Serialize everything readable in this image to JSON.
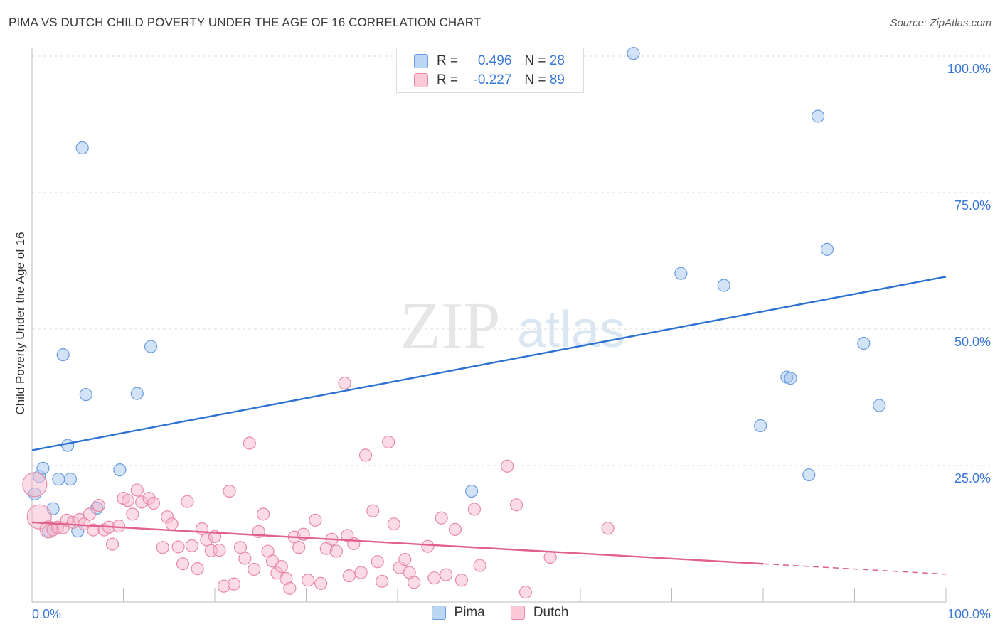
{
  "header": {
    "title": "PIMA VS DUTCH CHILD POVERTY UNDER THE AGE OF 16 CORRELATION CHART",
    "source": "Source: ZipAtlas.com"
  },
  "watermark": {
    "zip": "ZIP",
    "atlas": "atlas"
  },
  "legend": {
    "rows": [
      {
        "r_label": "R =",
        "r_value": "0.496",
        "n_label": "N =",
        "n_value": "28"
      },
      {
        "r_label": "R =",
        "r_value": "-0.227",
        "n_label": "N =",
        "n_value": "89"
      }
    ]
  },
  "bottom_legend": {
    "pima": "Pima",
    "dutch": "Dutch"
  },
  "colors": {
    "pima_fill": "#a8c8f0",
    "pima_stroke": "#6a9de0",
    "pima_line": "#2d72d2",
    "dutch_fill": "#f7b8cb",
    "dutch_stroke": "#e88aa8",
    "dutch_line": "#e0608e",
    "tick_label": "#3a78d8",
    "grid": "#dddddd"
  },
  "chart_data": {
    "type": "scatter",
    "title": "PIMA VS DUTCH CHILD POVERTY UNDER THE AGE OF 16 CORRELATION CHART",
    "xlabel": "",
    "ylabel": "Child Poverty Under the Age of 16",
    "xlim": [
      0,
      100
    ],
    "ylim": [
      0,
      100
    ],
    "x_tick_labels": [
      "0.0%",
      "100.0%"
    ],
    "y_tick_labels": [
      {
        "value": 25,
        "label": "25.0%"
      },
      {
        "value": 50,
        "label": "50.0%"
      },
      {
        "value": 75,
        "label": "75.0%"
      },
      {
        "value": 100,
        "label": "100.0%"
      }
    ],
    "grid": true,
    "legend": "top-center",
    "series": [
      {
        "name": "Pima",
        "r": 0.496,
        "n": 28,
        "trend": {
          "x": [
            0,
            100
          ],
          "y": [
            27.8,
            59.6
          ]
        },
        "points": [
          [
            0.3,
            19.8
          ],
          [
            0.8,
            23.0
          ],
          [
            1.2,
            24.5
          ],
          [
            2.3,
            17.1
          ],
          [
            2.9,
            22.5
          ],
          [
            4.2,
            22.5
          ],
          [
            5.0,
            13.0
          ],
          [
            5.5,
            83.2
          ],
          [
            5.9,
            38.0
          ],
          [
            7.1,
            17.2
          ],
          [
            9.6,
            24.2
          ],
          [
            11.5,
            38.2
          ],
          [
            13.0,
            46.8
          ],
          [
            3.4,
            45.3
          ],
          [
            3.9,
            28.7
          ],
          [
            1.8,
            13.0
          ],
          [
            48.1,
            20.3
          ],
          [
            65.8,
            100.5
          ],
          [
            86.0,
            89.0
          ],
          [
            92.7,
            36.0
          ],
          [
            71.0,
            60.2
          ],
          [
            75.7,
            58.0
          ],
          [
            82.6,
            41.2
          ],
          [
            79.7,
            32.3
          ],
          [
            83.0,
            41.0
          ],
          [
            87.0,
            64.6
          ],
          [
            85.0,
            23.3
          ],
          [
            91.0,
            47.4
          ]
        ]
      },
      {
        "name": "Dutch",
        "r": -0.227,
        "n": 89,
        "trend": {
          "x": [
            0,
            80
          ],
          "y": [
            14.6,
            7.0
          ]
        },
        "trend_dashed": {
          "x": [
            80,
            100
          ],
          "y": [
            7.0,
            5.1
          ]
        },
        "points": [
          [
            0.3,
            21.5
          ],
          [
            0.8,
            15.6
          ],
          [
            1.8,
            13.3
          ],
          [
            2.3,
            13.2
          ],
          [
            2.8,
            13.7
          ],
          [
            3.4,
            13.6
          ],
          [
            3.8,
            15.0
          ],
          [
            4.5,
            14.6
          ],
          [
            5.2,
            15.1
          ],
          [
            5.7,
            14.3
          ],
          [
            6.3,
            16.1
          ],
          [
            6.7,
            13.2
          ],
          [
            7.3,
            17.7
          ],
          [
            7.9,
            13.2
          ],
          [
            8.4,
            13.7
          ],
          [
            8.8,
            10.6
          ],
          [
            9.5,
            13.9
          ],
          [
            10.0,
            19.0
          ],
          [
            10.5,
            18.6
          ],
          [
            11.0,
            16.1
          ],
          [
            11.5,
            20.5
          ],
          [
            12.0,
            18.3
          ],
          [
            12.8,
            19.0
          ],
          [
            13.3,
            18.1
          ],
          [
            14.3,
            10.0
          ],
          [
            14.8,
            15.6
          ],
          [
            15.3,
            14.3
          ],
          [
            16.0,
            10.1
          ],
          [
            16.5,
            7.0
          ],
          [
            17.0,
            18.4
          ],
          [
            17.5,
            10.3
          ],
          [
            18.1,
            6.1
          ],
          [
            18.6,
            13.4
          ],
          [
            19.1,
            11.4
          ],
          [
            19.6,
            9.4
          ],
          [
            20.0,
            12.0
          ],
          [
            20.5,
            9.5
          ],
          [
            21.0,
            2.9
          ],
          [
            21.6,
            20.3
          ],
          [
            22.1,
            3.3
          ],
          [
            22.8,
            10.0
          ],
          [
            23.3,
            8.0
          ],
          [
            23.8,
            29.1
          ],
          [
            24.3,
            6.0
          ],
          [
            24.8,
            12.9
          ],
          [
            25.3,
            16.1
          ],
          [
            25.8,
            9.3
          ],
          [
            26.3,
            7.5
          ],
          [
            26.8,
            5.3
          ],
          [
            27.3,
            6.5
          ],
          [
            27.8,
            4.3
          ],
          [
            28.2,
            2.5
          ],
          [
            28.7,
            11.9
          ],
          [
            29.2,
            10.0
          ],
          [
            29.7,
            12.4
          ],
          [
            30.2,
            4.0
          ],
          [
            31.0,
            15.0
          ],
          [
            31.6,
            3.4
          ],
          [
            32.2,
            9.8
          ],
          [
            32.8,
            11.5
          ],
          [
            33.3,
            9.3
          ],
          [
            34.2,
            40.1
          ],
          [
            34.7,
            4.8
          ],
          [
            35.2,
            10.7
          ],
          [
            36.0,
            5.4
          ],
          [
            36.5,
            26.9
          ],
          [
            37.3,
            16.7
          ],
          [
            37.8,
            7.4
          ],
          [
            38.3,
            3.8
          ],
          [
            39.0,
            29.3
          ],
          [
            39.6,
            14.3
          ],
          [
            40.2,
            6.3
          ],
          [
            40.8,
            7.8
          ],
          [
            41.3,
            5.4
          ],
          [
            41.8,
            3.6
          ],
          [
            43.3,
            10.2
          ],
          [
            44.0,
            4.4
          ],
          [
            44.8,
            15.4
          ],
          [
            45.3,
            5.0
          ],
          [
            46.3,
            13.3
          ],
          [
            47.0,
            4.0
          ],
          [
            48.4,
            17.0
          ],
          [
            49.0,
            6.7
          ],
          [
            52.0,
            24.9
          ],
          [
            53.0,
            17.8
          ],
          [
            54.0,
            1.8
          ],
          [
            56.7,
            8.2
          ],
          [
            63.0,
            13.5
          ],
          [
            34.5,
            12.2
          ]
        ]
      }
    ]
  }
}
